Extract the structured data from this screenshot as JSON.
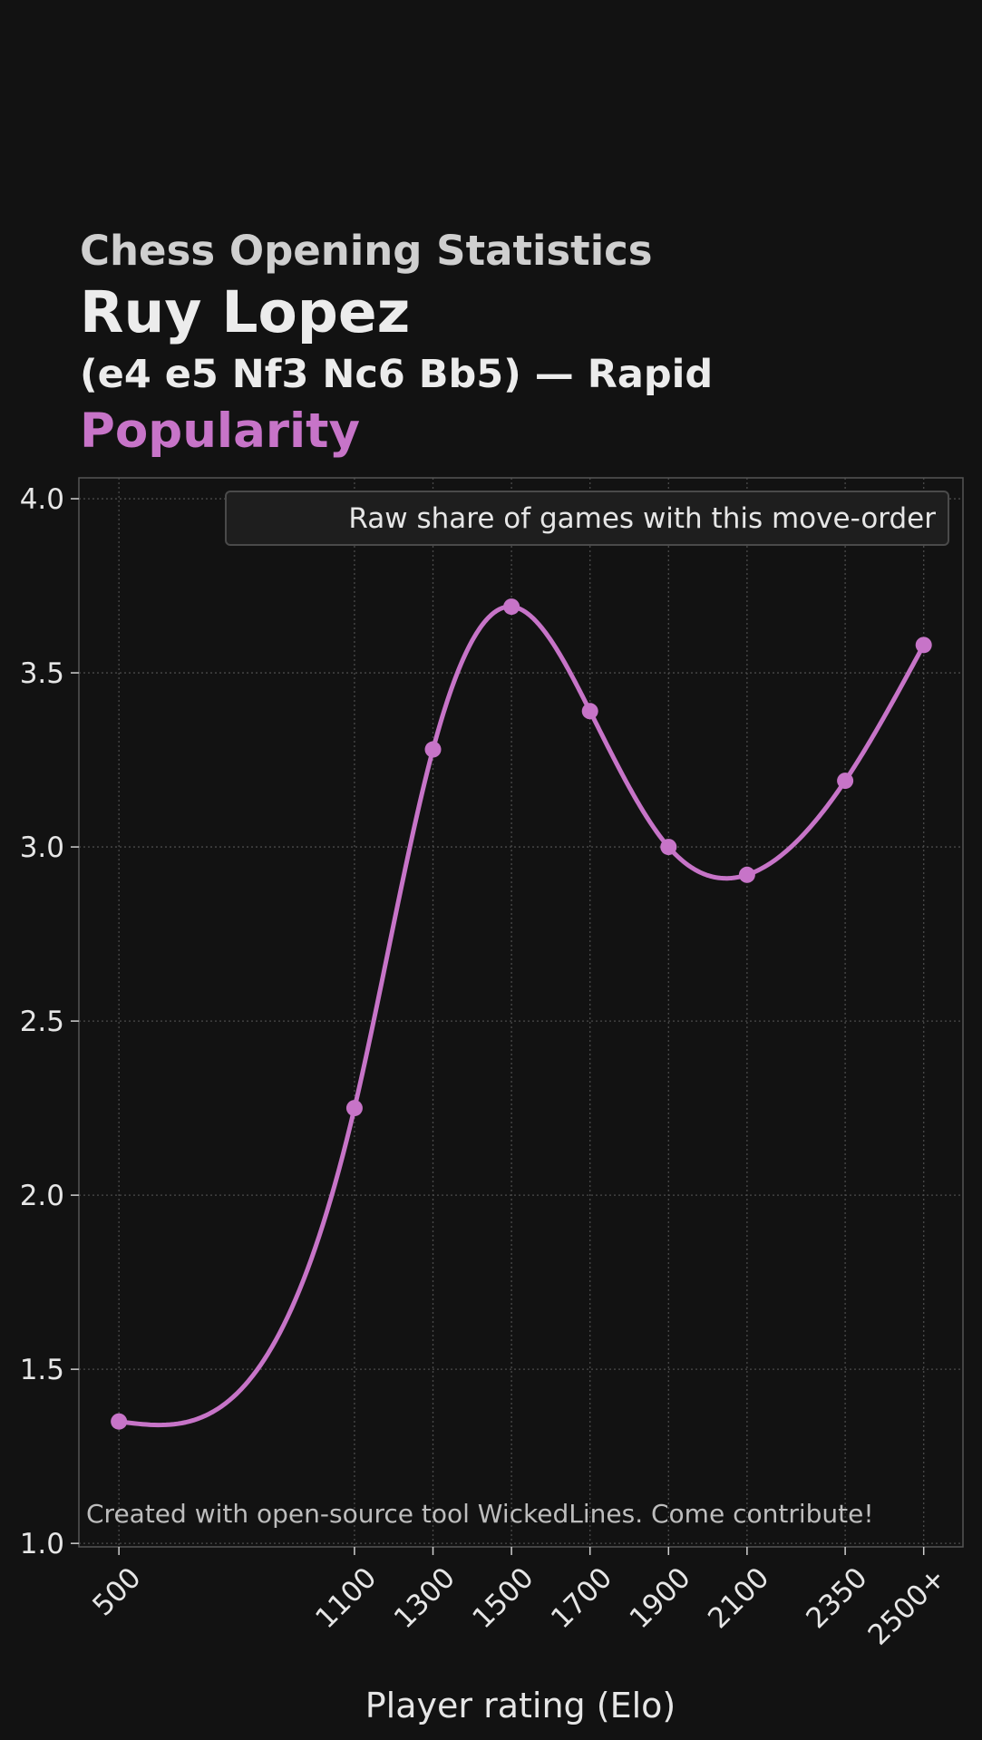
{
  "header": {
    "eyebrow": "Chess Opening Statistics",
    "opening": "Ruy Lopez",
    "moves": "(e4 e5 Nf3 Nc6 Bb5) — Rapid",
    "metric": "Popularity"
  },
  "colors": {
    "background": "#121212",
    "accent": "#c774c8",
    "grid": "#4a4a4a",
    "text": "#e6e6e6"
  },
  "chart_data": {
    "type": "line",
    "title": "Popularity",
    "xlabel": "Player rating (Elo)",
    "ylabel": "",
    "categories": [
      "500",
      "1100",
      "1300",
      "1500",
      "1700",
      "1900",
      "2100",
      "2350",
      "2500+"
    ],
    "x": [
      500,
      1100,
      1300,
      1500,
      1700,
      1900,
      2100,
      2350,
      2550
    ],
    "series": [
      {
        "name": "Raw share of games with this move-order",
        "values": [
          1.35,
          2.25,
          3.28,
          3.69,
          3.39,
          3.0,
          2.92,
          3.19,
          3.58
        ]
      }
    ],
    "xlim": [
      398,
      2650
    ],
    "ylim": [
      0.99,
      4.06
    ],
    "yticks": [
      1.0,
      1.5,
      2.0,
      2.5,
      3.0,
      3.5,
      4.0
    ],
    "ytick_labels": [
      "1.0",
      "1.5",
      "2.0",
      "2.5",
      "3.0",
      "3.5",
      "4.0"
    ],
    "grid": true,
    "legend": "top-right",
    "annotation": "Created with open-source tool WickedLines. Come contribute!"
  }
}
